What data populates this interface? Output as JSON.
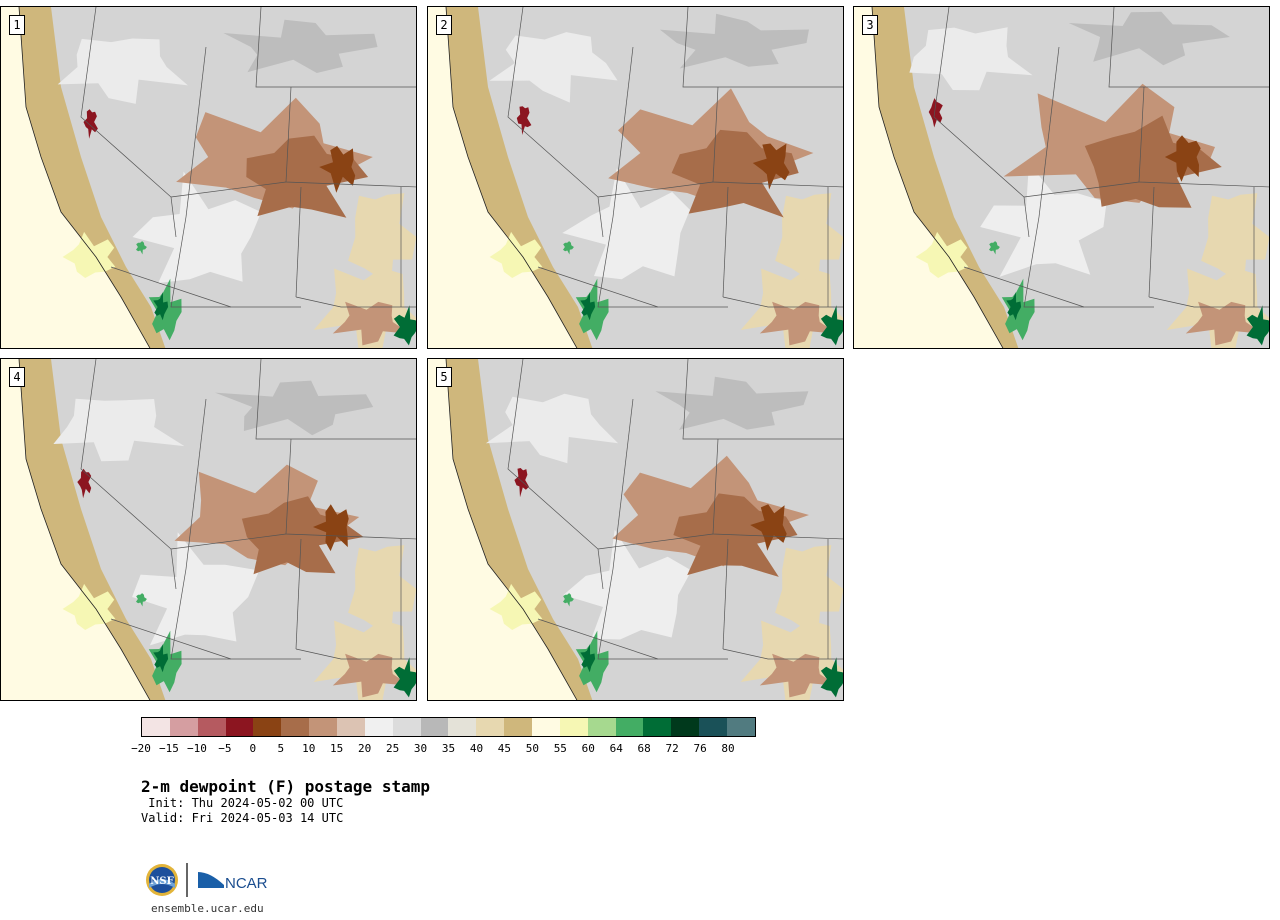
{
  "panels": [
    {
      "label": "1"
    },
    {
      "label": "2"
    },
    {
      "label": "3"
    },
    {
      "label": "4"
    },
    {
      "label": "5"
    }
  ],
  "legend": {
    "colors": [
      "#f3e4e4",
      "#d59ea1",
      "#b55a60",
      "#8c1520",
      "#8a4314",
      "#a76d4a",
      "#c39478",
      "#dcc3b3",
      "#f0f0f0",
      "#dcdcdc",
      "#b8b8b8",
      "#e4e2d8",
      "#e7d8b0",
      "#cfb77c",
      "#fffbe3",
      "#f6f7b4",
      "#a6d98f",
      "#43ad64",
      "#006d36",
      "#00391c",
      "#1a5158",
      "#517b80"
    ],
    "ticks": [
      "−20",
      "−15",
      "−10",
      "−5",
      "0",
      "5",
      "10",
      "15",
      "20",
      "25",
      "30",
      "35",
      "40",
      "45",
      "50",
      "55",
      "60",
      "64",
      "68",
      "72",
      "76",
      "80"
    ]
  },
  "title": "2-m dewpoint (F) postage stamp",
  "init": " Init: Thu 2024-05-02 00 UTC",
  "valid": "Valid: Fri 2024-05-03 14 UTC",
  "logos": {
    "left": "NSF",
    "right": "NCAR"
  },
  "website": "ensemble.ucar.edu"
}
